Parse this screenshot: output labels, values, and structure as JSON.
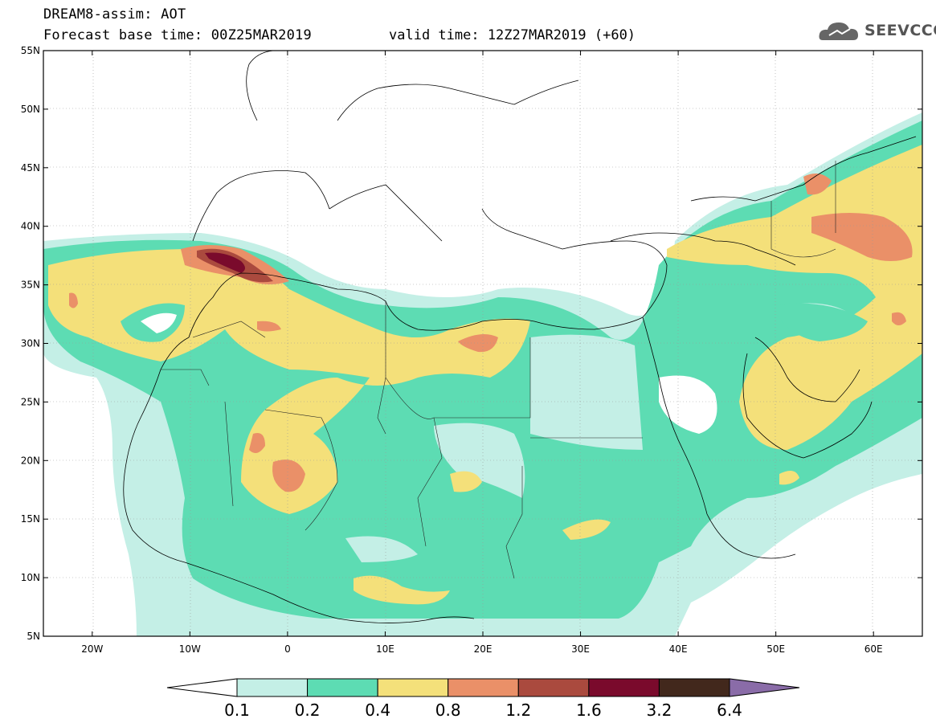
{
  "header": {
    "title_line1": "DREAM8-assim: AOT",
    "title_line2": "Forecast base time: 00Z25MAR2019",
    "valid_time": "valid time: 12Z27MAR2019 (+60)",
    "logo_text": "SEEVCCC",
    "logo_icon": "cloud-icon"
  },
  "map": {
    "lon_range": [
      -25,
      65
    ],
    "lat_range": [
      5,
      55
    ],
    "lon_ticks": [
      {
        "value": -20,
        "label": "20W"
      },
      {
        "value": -10,
        "label": "10W"
      },
      {
        "value": 0,
        "label": "0"
      },
      {
        "value": 10,
        "label": "10E"
      },
      {
        "value": 20,
        "label": "20E"
      },
      {
        "value": 30,
        "label": "30E"
      },
      {
        "value": 40,
        "label": "40E"
      },
      {
        "value": 50,
        "label": "50E"
      },
      {
        "value": 60,
        "label": "60E"
      }
    ],
    "lat_ticks": [
      {
        "value": 5,
        "label": "5N"
      },
      {
        "value": 10,
        "label": "10N"
      },
      {
        "value": 15,
        "label": "15N"
      },
      {
        "value": 20,
        "label": "20N"
      },
      {
        "value": 25,
        "label": "25N"
      },
      {
        "value": 30,
        "label": "30N"
      },
      {
        "value": 35,
        "label": "35N"
      },
      {
        "value": 40,
        "label": "40N"
      },
      {
        "value": 45,
        "label": "45N"
      },
      {
        "value": 50,
        "label": "50N"
      },
      {
        "value": 55,
        "label": "55N"
      }
    ]
  },
  "colorbar": {
    "labels": [
      "0.1",
      "0.2",
      "0.4",
      "0.8",
      "1.2",
      "1.6",
      "3.2",
      "6.4"
    ],
    "colors": [
      "#ffffff",
      "#c4efe6",
      "#5ddcb3",
      "#f4e07a",
      "#ea9068",
      "#aa4a3e",
      "#7a0a2c",
      "#42281c",
      "#8a6ca8"
    ]
  }
}
